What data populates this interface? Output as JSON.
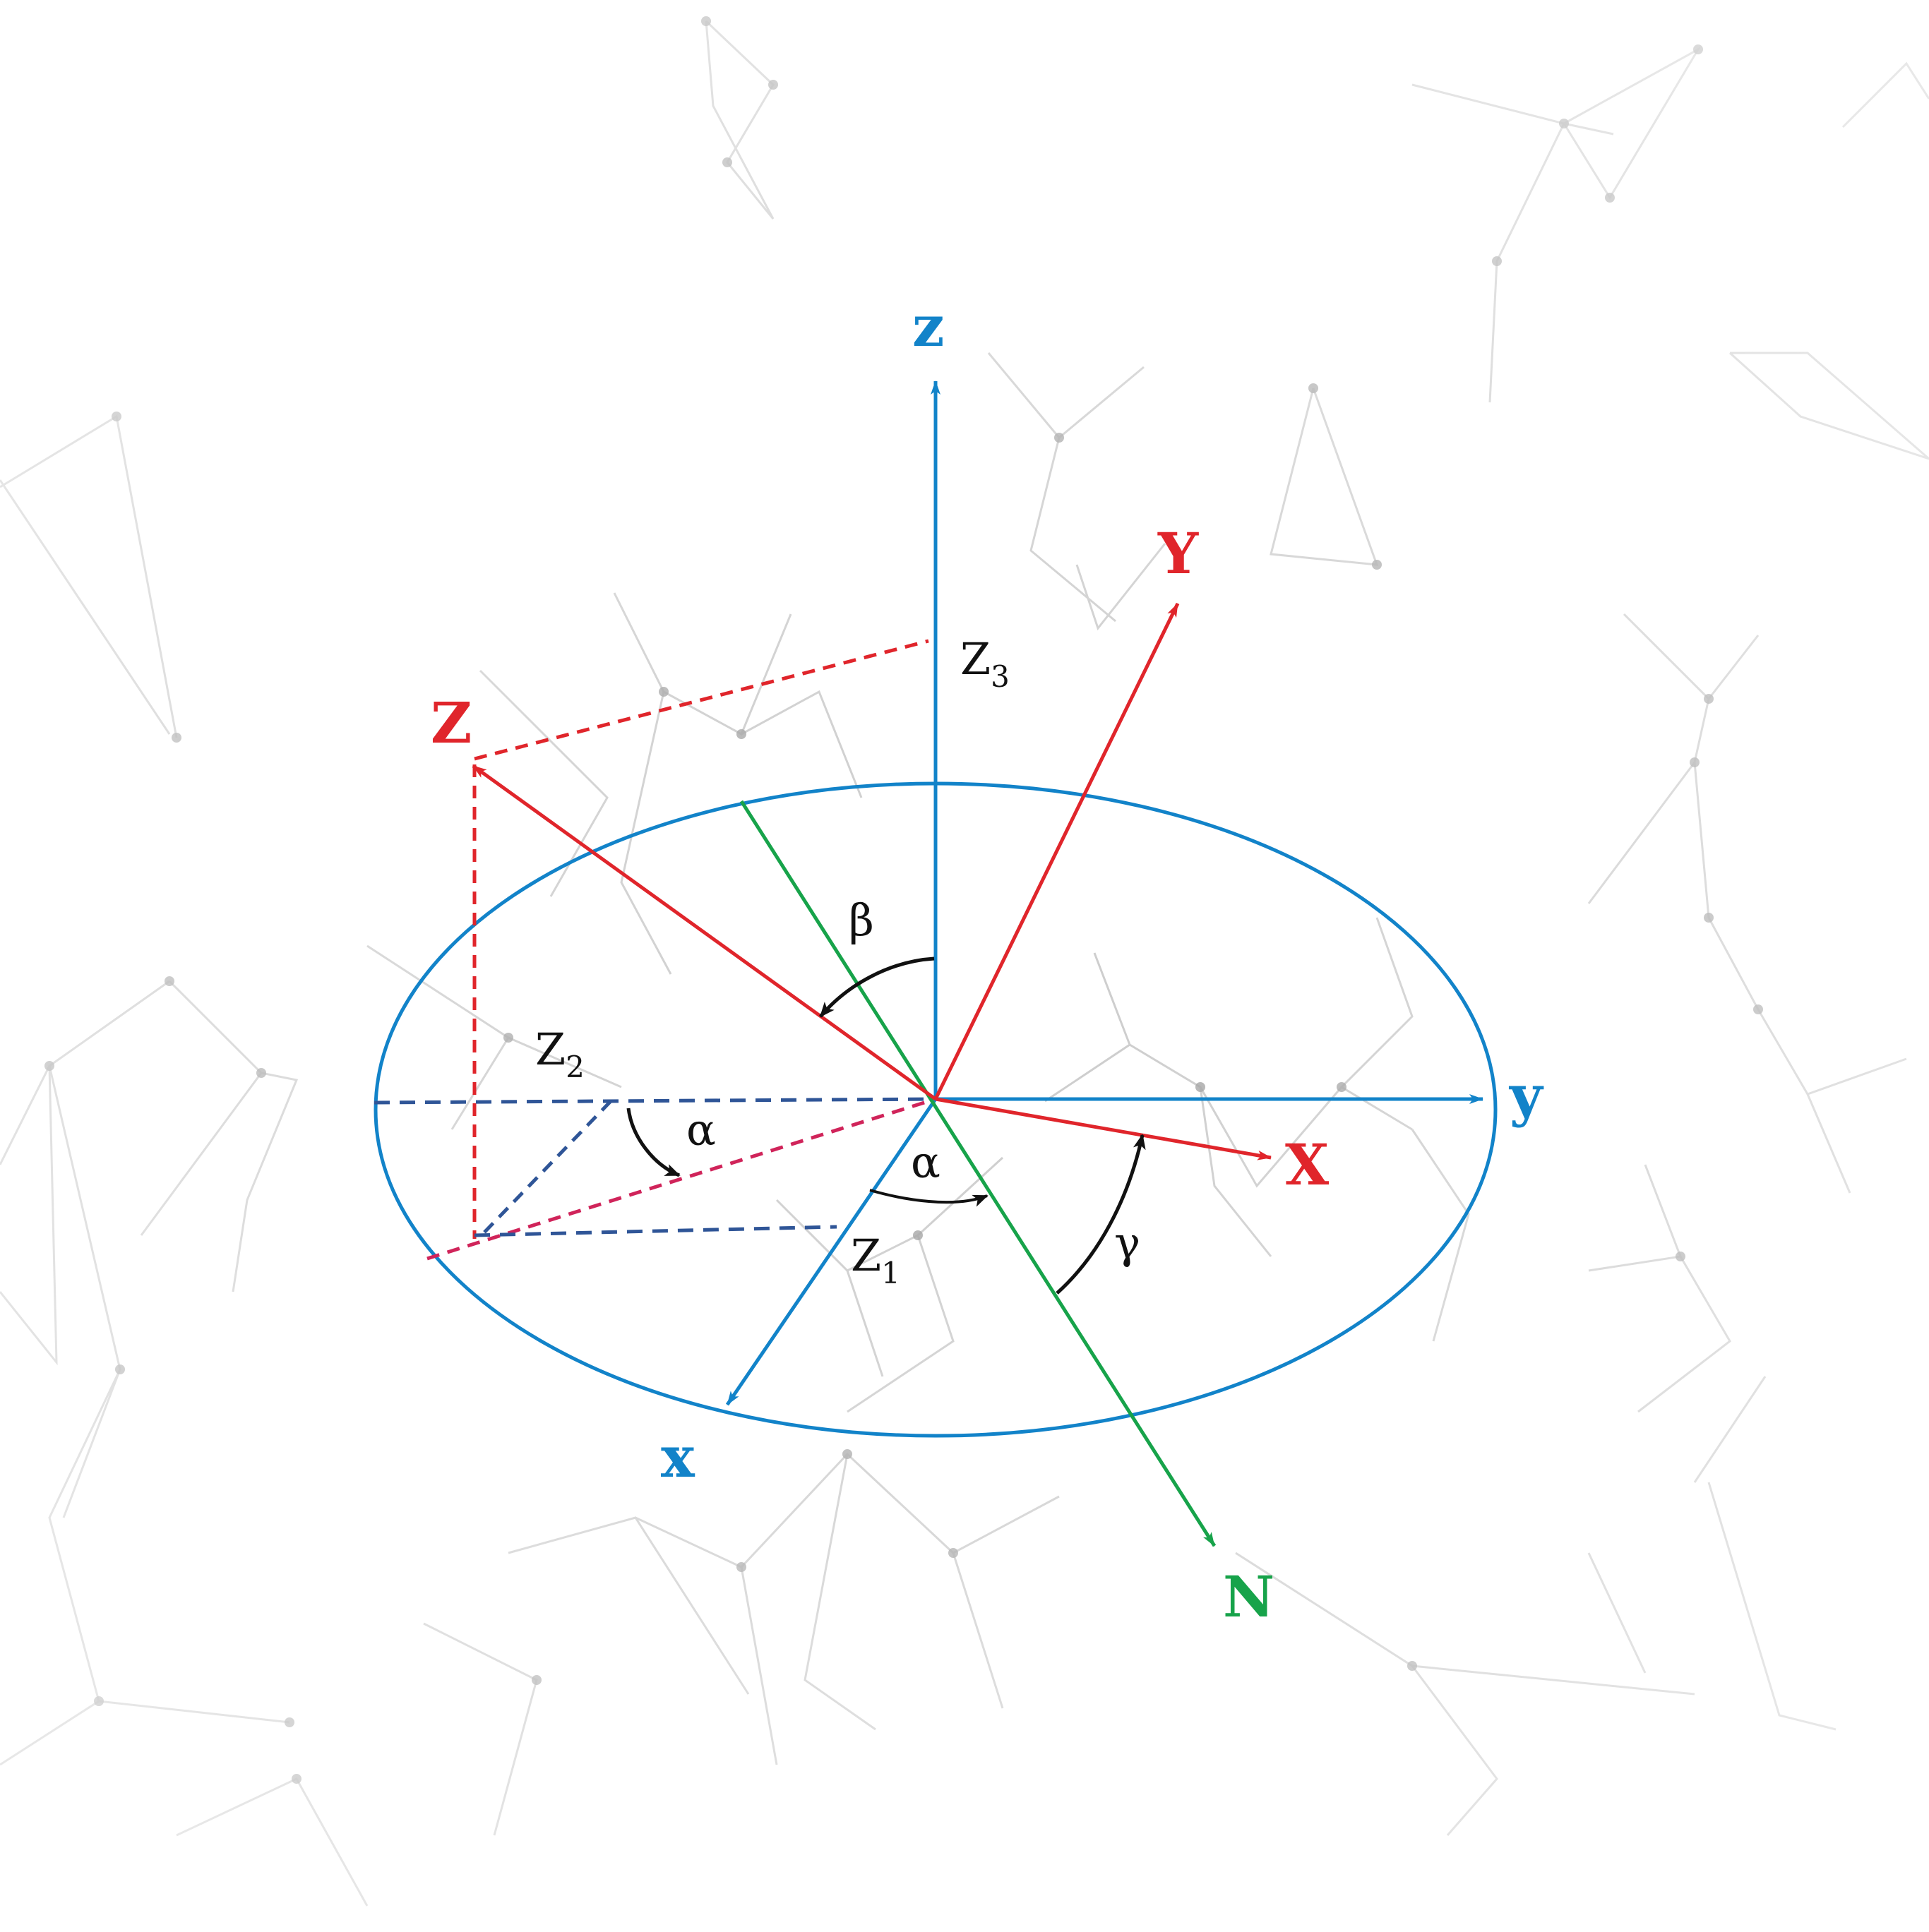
{
  "colors": {
    "fixed_axes": "#1283c9",
    "rotated_axes": "#e0252b",
    "node_line": "#17a34a",
    "projection_blue": "#2f5597",
    "projection_red": "#d0245a",
    "angle_arrows": "#111111",
    "network_background": "#b9b9b9"
  },
  "labels": {
    "fixed_z": "z",
    "fixed_y": "y",
    "fixed_x": "x",
    "rotated_Z": "Z",
    "rotated_Y": "Y",
    "rotated_X": "X",
    "node_N": "N",
    "z3_main": "Z",
    "z3_sub": "3",
    "z2_main": "Z",
    "z2_sub": "2",
    "z1_main": "Z",
    "z1_sub": "1",
    "beta": "β",
    "alpha_left": "α",
    "alpha_center": "α",
    "gamma": "γ"
  },
  "icons": {
    "background": "network-mesh",
    "arrowheads": "arrowhead"
  }
}
